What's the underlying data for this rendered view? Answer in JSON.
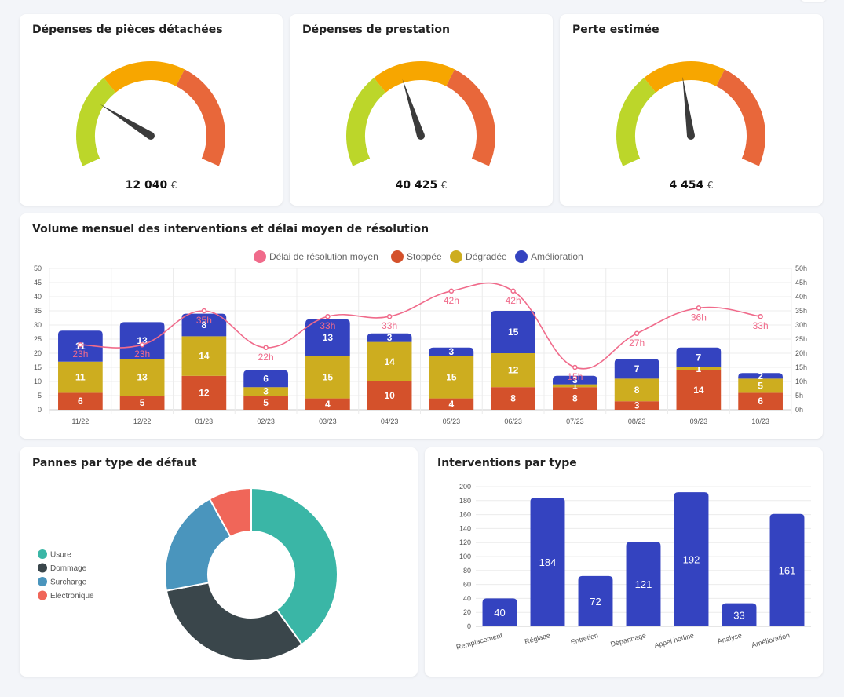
{
  "gauges": [
    {
      "title": "Dépenses de pièces détachées",
      "value": "12 040",
      "unit": "€",
      "needle_angle": 58
    },
    {
      "title": "Dépenses de prestation",
      "value": "40 425",
      "unit": "€",
      "needle_angle": 18
    },
    {
      "title": "Perte estimée",
      "value": "4 454",
      "unit": "€",
      "needle_angle": 8
    }
  ],
  "colors": {
    "gauge_green": "#bcd62a",
    "gauge_orange": "#f7a600",
    "gauge_red": "#e8673a",
    "stoppee": "#d4512b",
    "degradee": "#cdad1f",
    "amelioration": "#3443c0",
    "delai": "#f06b8b",
    "usure": "#3ab6a6",
    "dommage": "#3a464b",
    "surcharge": "#4a95bd",
    "electronique": "#f06659",
    "bar": "#3443c0"
  },
  "chart_data": [
    {
      "type": "bar",
      "title": "Volume mensuel des interventions et délai moyen de résolution",
      "categories": [
        "11/22",
        "12/22",
        "01/23",
        "02/23",
        "03/23",
        "04/23",
        "05/23",
        "06/23",
        "07/23",
        "08/23",
        "09/23",
        "10/23"
      ],
      "series": [
        {
          "name": "Stoppée",
          "values": [
            6,
            5,
            12,
            5,
            4,
            10,
            4,
            8,
            8,
            3,
            14,
            6
          ]
        },
        {
          "name": "Dégradée",
          "values": [
            11,
            13,
            14,
            3,
            15,
            14,
            15,
            12,
            1,
            8,
            1,
            5
          ]
        },
        {
          "name": "Amélioration",
          "values": [
            11,
            13,
            8,
            6,
            13,
            3,
            3,
            15,
            3,
            7,
            7,
            2
          ]
        },
        {
          "name": "Délai de résolution moyen",
          "type": "line",
          "axis": "right",
          "values": [
            23,
            23,
            35,
            22,
            33,
            33,
            42,
            42,
            15,
            27,
            36,
            33
          ],
          "labels": [
            "23h",
            "23h",
            "35h",
            "22h",
            "33h",
            "33h",
            "42h",
            "42h",
            "15h",
            "27h",
            "36h",
            "33h"
          ]
        }
      ],
      "ylim": [
        0,
        50
      ],
      "y_ticks": [
        "0",
        "5",
        "10",
        "15",
        "20",
        "25",
        "30",
        "35",
        "40",
        "45",
        "50"
      ],
      "y2lim": [
        0,
        50
      ],
      "y2_ticks": [
        "0h",
        "5h",
        "10h",
        "15h",
        "20h",
        "25h",
        "30h",
        "35h",
        "40h",
        "45h",
        "50h"
      ],
      "legend": [
        "Délai de résolution moyen",
        "Stoppée",
        "Dégradée",
        "Amélioration"
      ],
      "legend_position": "top"
    },
    {
      "type": "pie",
      "title": "Pannes par type de défaut",
      "labels": [
        "Usure",
        "Dommage",
        "Surcharge",
        "Electronique"
      ],
      "values": [
        40,
        32,
        20,
        8
      ],
      "legend_position": "left"
    },
    {
      "type": "bar",
      "title": "Interventions par type",
      "categories": [
        "Remplacement",
        "Réglage",
        "Entretien",
        "Dépannage",
        "Appel hotline",
        "Analyse",
        "Amélioration"
      ],
      "values": [
        40,
        184,
        72,
        121,
        192,
        33,
        161
      ],
      "ylim": [
        0,
        200
      ],
      "y_ticks": [
        "0",
        "20",
        "40",
        "60",
        "80",
        "100",
        "120",
        "140",
        "160",
        "180",
        "200"
      ]
    }
  ]
}
